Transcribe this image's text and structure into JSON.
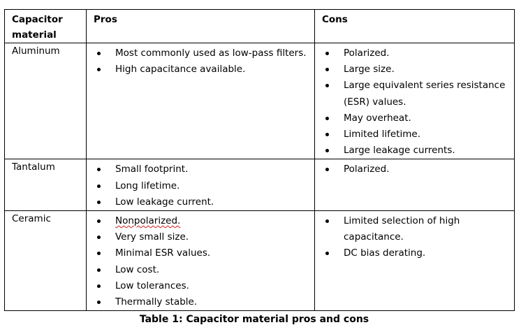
{
  "table": {
    "headers": {
      "material": "Capacitor material",
      "pros": "Pros",
      "cons": "Cons"
    },
    "rows": [
      {
        "material": "Aluminum",
        "pros": [
          "Most commonly used as low-pass filters.",
          "High capacitance available."
        ],
        "cons": [
          "Polarized.",
          "Large size.",
          "Large equivalent series resistance (ESR) values.",
          "May overheat.",
          "Limited lifetime.",
          "Large leakage currents."
        ]
      },
      {
        "material": "Tantalum",
        "pros": [
          "Small footprint.",
          "Long lifetime.",
          "Low leakage current."
        ],
        "cons": [
          "Polarized."
        ]
      },
      {
        "material": "Ceramic",
        "pros": [
          "Nonpolarized.",
          "Very small size.",
          "Minimal ESR values.",
          "Low cost.",
          "Low tolerances.",
          "Thermally stable."
        ],
        "cons": [
          "Limited selection of high capacitance.",
          "DC bias derating."
        ]
      }
    ]
  },
  "caption": "Table 1: Capacitor material pros and cons"
}
